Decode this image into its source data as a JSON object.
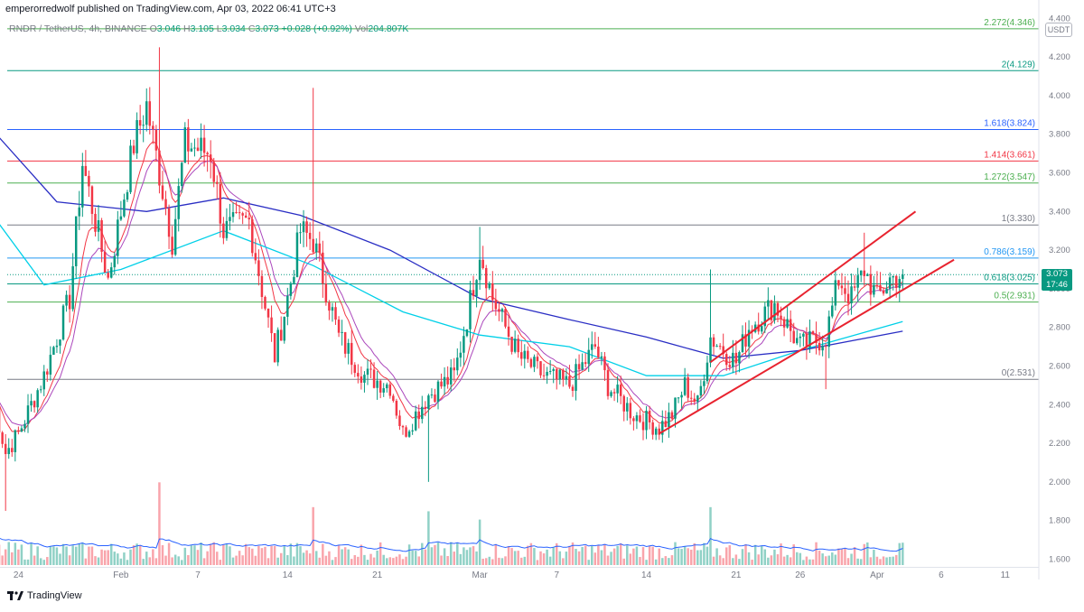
{
  "header": {
    "publisher": "emperorredwolf published on TradingView.com, Apr 03, 2022 06:41 UTC+3",
    "symbol": "RNDR / TetherUS, 4h, BINANCE",
    "open_label": "O",
    "open": "3.046",
    "high_label": "H",
    "high": "3.105",
    "low_label": "L",
    "low": "3.034",
    "close_label": "C",
    "close": "3.073",
    "change": "+0.028 (+0.92%)",
    "vol_label": "Vol",
    "volume": "204.807K",
    "unit": "USDT"
  },
  "last_price": {
    "price": "3.073",
    "countdown": "17:46"
  },
  "brand": {
    "name": "TradingView",
    "icon": "tradingview-logo-icon"
  },
  "colors": {
    "up": "#089981",
    "down": "#f23645",
    "ema_fast": "#f23645",
    "ema_mid": "#ab47bc",
    "ma_cyan": "#00d0e8",
    "ma_blue": "#2a2ec4",
    "channel": "#e8232f"
  },
  "chart_data": {
    "type": "candlestick",
    "title": "",
    "xlabel": "",
    "ylabel": "",
    "ylim": [
      1.56,
      4.42
    ],
    "yticks": [
      "4.400",
      "4.200",
      "4.000",
      "3.800",
      "3.600",
      "3.400",
      "3.200",
      "3.000",
      "2.800",
      "2.600",
      "2.400",
      "2.200",
      "2.000",
      "1.800",
      "1.600"
    ],
    "xticks": [
      "24",
      "Feb",
      "7",
      "14",
      "21",
      "Mar",
      "7",
      "14",
      "21",
      "26",
      "Apr",
      "6",
      "11"
    ],
    "grid": false,
    "fib_levels": [
      {
        "label": "2.272(4.346)",
        "price": 4.346,
        "color": "#4caf50"
      },
      {
        "label": "2(4.129)",
        "price": 4.129,
        "color": "#089981"
      },
      {
        "label": "1.618(3.824)",
        "price": 3.824,
        "color": "#2962ff"
      },
      {
        "label": "1.414(3.661)",
        "price": 3.661,
        "color": "#f23645"
      },
      {
        "label": "1.272(3.547)",
        "price": 3.547,
        "color": "#4caf50"
      },
      {
        "label": "1(3.330)",
        "price": 3.33,
        "color": "#787b86"
      },
      {
        "label": "0.786(3.159)",
        "price": 3.159,
        "color": "#2196f3"
      },
      {
        "label": "0.618(3.025)",
        "price": 3.025,
        "color": "#089981"
      },
      {
        "label": "0.5(2.931)",
        "price": 2.931,
        "color": "#4caf50"
      },
      {
        "label": "0(2.531)",
        "price": 2.531,
        "color": "#787b86"
      }
    ],
    "ohlc_anchors": [
      {
        "date": "2022-01-22",
        "close": 2.45
      },
      {
        "date": "2022-01-23",
        "close": 2.15
      },
      {
        "date": "2022-01-24",
        "close": 2.25
      },
      {
        "date": "2022-01-26",
        "close": 2.55
      },
      {
        "date": "2022-01-28",
        "close": 2.95
      },
      {
        "date": "2022-01-29",
        "close": 3.65
      },
      {
        "date": "2022-01-31",
        "close": 3.05
      },
      {
        "date": "2022-02-02",
        "close": 3.75
      },
      {
        "date": "2022-02-03",
        "close": 3.95
      },
      {
        "date": "2022-02-05",
        "close": 3.25
      },
      {
        "date": "2022-02-06",
        "close": 3.75
      },
      {
        "date": "2022-02-08",
        "close": 3.7
      },
      {
        "date": "2022-02-09",
        "close": 3.3
      },
      {
        "date": "2022-02-11",
        "close": 3.35
      },
      {
        "date": "2022-02-13",
        "close": 2.65
      },
      {
        "date": "2022-02-14",
        "close": 2.95
      },
      {
        "date": "2022-02-15",
        "close": 3.3
      },
      {
        "date": "2022-02-16",
        "close": 3.25
      },
      {
        "date": "2022-02-18",
        "close": 2.75
      },
      {
        "date": "2022-02-20",
        "close": 2.55
      },
      {
        "date": "2022-02-22",
        "close": 2.5
      },
      {
        "date": "2022-02-23",
        "close": 2.25
      },
      {
        "date": "2022-02-25",
        "close": 2.45
      },
      {
        "date": "2022-02-27",
        "close": 2.55
      },
      {
        "date": "2022-02-28",
        "close": 2.85
      },
      {
        "date": "2022-03-01",
        "close": 3.2
      },
      {
        "date": "2022-03-02",
        "close": 2.95
      },
      {
        "date": "2022-03-04",
        "close": 2.65
      },
      {
        "date": "2022-03-06",
        "close": 2.55
      },
      {
        "date": "2022-03-08",
        "close": 2.5
      },
      {
        "date": "2022-03-10",
        "close": 2.7
      },
      {
        "date": "2022-03-11",
        "close": 2.5
      },
      {
        "date": "2022-03-13",
        "close": 2.35
      },
      {
        "date": "2022-03-15",
        "close": 2.28
      },
      {
        "date": "2022-03-16",
        "close": 2.35
      },
      {
        "date": "2022-03-17",
        "close": 2.5
      },
      {
        "date": "2022-03-18",
        "close": 2.4
      },
      {
        "date": "2022-03-19",
        "close": 2.75
      },
      {
        "date": "2022-03-21",
        "close": 2.62
      },
      {
        "date": "2022-03-22",
        "close": 2.8
      },
      {
        "date": "2022-03-24",
        "close": 2.92
      },
      {
        "date": "2022-03-26",
        "close": 2.7
      },
      {
        "date": "2022-03-28",
        "close": 2.75
      },
      {
        "date": "2022-03-29",
        "close": 3.05
      },
      {
        "date": "2022-03-30",
        "close": 2.95
      },
      {
        "date": "2022-03-31",
        "close": 3.1
      },
      {
        "date": "2022-04-01",
        "close": 2.95
      },
      {
        "date": "2022-04-02",
        "close": 3.05
      },
      {
        "date": "2022-04-03",
        "close": 3.073
      }
    ],
    "channel": {
      "lower": {
        "from": {
          "date": "2022-03-15",
          "price": 2.25
        },
        "to": {
          "date": "2022-04-07",
          "price": 3.15
        }
      },
      "upper": {
        "from": {
          "date": "2022-03-19",
          "price": 2.62
        },
        "to": {
          "date": "2022-04-04",
          "price": 3.4
        }
      }
    },
    "moving_average_blue": [
      {
        "date": "2022-01-22",
        "value": 3.82
      },
      {
        "date": "2022-01-27",
        "value": 3.45
      },
      {
        "date": "2022-02-03",
        "value": 3.4
      },
      {
        "date": "2022-02-09",
        "value": 3.47
      },
      {
        "date": "2022-02-15",
        "value": 3.38
      },
      {
        "date": "2022-02-22",
        "value": 3.2
      },
      {
        "date": "2022-03-01",
        "value": 2.95
      },
      {
        "date": "2022-03-08",
        "value": 2.84
      },
      {
        "date": "2022-03-14",
        "value": 2.75
      },
      {
        "date": "2022-03-20",
        "value": 2.64
      },
      {
        "date": "2022-03-26",
        "value": 2.68
      },
      {
        "date": "2022-04-03",
        "value": 2.78
      }
    ],
    "moving_average_cyan": [
      {
        "date": "2022-01-22",
        "value": 3.38
      },
      {
        "date": "2022-01-26",
        "value": 3.02
      },
      {
        "date": "2022-02-01",
        "value": 3.1
      },
      {
        "date": "2022-02-09",
        "value": 3.3
      },
      {
        "date": "2022-02-16",
        "value": 3.12
      },
      {
        "date": "2022-02-23",
        "value": 2.88
      },
      {
        "date": "2022-03-01",
        "value": 2.76
      },
      {
        "date": "2022-03-08",
        "value": 2.7
      },
      {
        "date": "2022-03-14",
        "value": 2.55
      },
      {
        "date": "2022-03-20",
        "value": 2.55
      },
      {
        "date": "2022-03-26",
        "value": 2.68
      },
      {
        "date": "2022-04-03",
        "value": 2.83
      }
    ],
    "volume": {
      "ylim": [
        0,
        12
      ],
      "spikes": [
        {
          "date": "2022-02-04",
          "value": 10
        },
        {
          "date": "2022-02-16",
          "value": 7
        },
        {
          "date": "2022-02-25",
          "value": 6.5
        },
        {
          "date": "2022-03-01",
          "value": 5.5
        },
        {
          "date": "2022-03-19",
          "value": 7
        }
      ]
    }
  }
}
